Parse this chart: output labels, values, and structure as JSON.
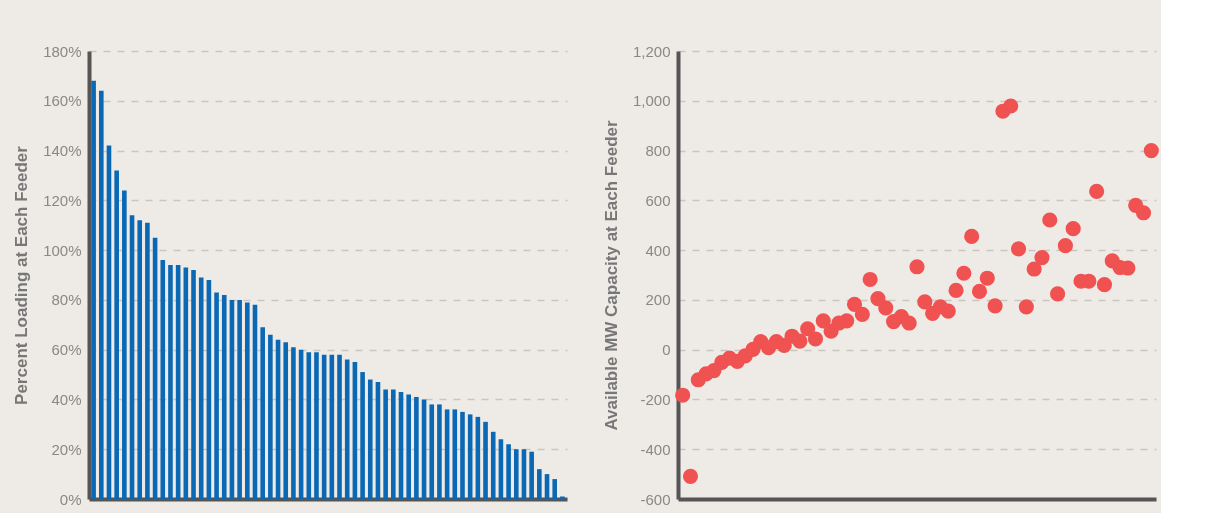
{
  "chart_data": [
    {
      "type": "bar",
      "ylabel": "Percent Loading at Each Feeder",
      "color": "#0a68b4",
      "categories": [
        null,
        null,
        null,
        null,
        null,
        null,
        null,
        null,
        null,
        null,
        null,
        null,
        null,
        null,
        null,
        null,
        null,
        null,
        null,
        null,
        null,
        null,
        null,
        null,
        null,
        null,
        null,
        null,
        null,
        null,
        null,
        null,
        null,
        null,
        null,
        null,
        null,
        null,
        null,
        null,
        null,
        null,
        null,
        null,
        null,
        null,
        null,
        null,
        null,
        null,
        null,
        null,
        null,
        null,
        null,
        null,
        null,
        null,
        null,
        null,
        null,
        null
      ],
      "values": [
        168,
        164,
        142,
        132,
        124,
        114,
        112,
        111,
        105,
        96,
        94,
        94,
        93,
        92,
        89,
        88,
        83,
        82,
        80,
        80,
        79,
        78,
        69,
        66,
        64,
        63,
        61,
        60,
        59,
        59,
        58,
        58,
        58,
        56,
        55,
        51,
        48,
        47,
        44,
        44,
        43,
        42,
        41,
        40,
        38,
        38,
        36,
        36,
        35,
        34,
        33,
        31,
        27,
        24,
        22,
        20,
        20,
        19,
        12,
        10,
        8,
        1
      ],
      "ylim": [
        0,
        180
      ],
      "yticks": [
        {
          "value": 0,
          "label": "0%"
        },
        {
          "value": 20,
          "label": "20%"
        },
        {
          "value": 40,
          "label": "40%"
        },
        {
          "value": 60,
          "label": "60%"
        },
        {
          "value": 80,
          "label": "80%"
        },
        {
          "value": 100,
          "label": "100%"
        },
        {
          "value": 120,
          "label": "120%"
        },
        {
          "value": 140,
          "label": "140%"
        },
        {
          "value": 160,
          "label": "160%"
        },
        {
          "value": 180,
          "label": "180%"
        }
      ],
      "grid": "y",
      "tick_labels": "y"
    },
    {
      "type": "scatter",
      "ylabel": "Available MW Capacity at Each Feeder",
      "color": "#f05252",
      "marker": "circle",
      "categories": [
        null,
        null,
        null,
        null,
        null,
        null,
        null,
        null,
        null,
        null,
        null,
        null,
        null,
        null,
        null,
        null,
        null,
        null,
        null,
        null,
        null,
        null,
        null,
        null,
        null,
        null,
        null,
        null,
        null,
        null,
        null,
        null,
        null,
        null,
        null,
        null,
        null,
        null,
        null,
        null,
        null,
        null,
        null,
        null,
        null,
        null,
        null,
        null,
        null,
        null,
        null,
        null,
        null,
        null,
        null,
        null,
        null,
        null,
        null,
        null,
        null
      ],
      "values": [
        -183,
        -509,
        -121,
        -97,
        -84,
        -51,
        -34,
        -47,
        -25,
        1,
        32,
        8,
        32,
        17,
        54,
        34,
        84,
        43,
        116,
        74,
        107,
        116,
        182,
        142,
        282,
        205,
        168,
        113,
        133,
        107,
        333,
        192,
        146,
        172,
        155,
        238,
        307,
        455,
        234,
        287,
        176,
        958,
        979,
        405,
        172,
        324,
        370,
        521,
        224,
        418,
        486,
        275,
        275,
        636,
        261,
        357,
        330,
        328,
        580,
        550,
        800
      ],
      "ylim": [
        -600,
        1200
      ],
      "yticks": [
        -600,
        -400,
        -200,
        0,
        200,
        400,
        600,
        800,
        {
          "value": 1000,
          "label": "1,000"
        },
        {
          "value": 1200,
          "label": "1,200"
        }
      ],
      "grid": "y",
      "tick_labels": "y"
    }
  ]
}
